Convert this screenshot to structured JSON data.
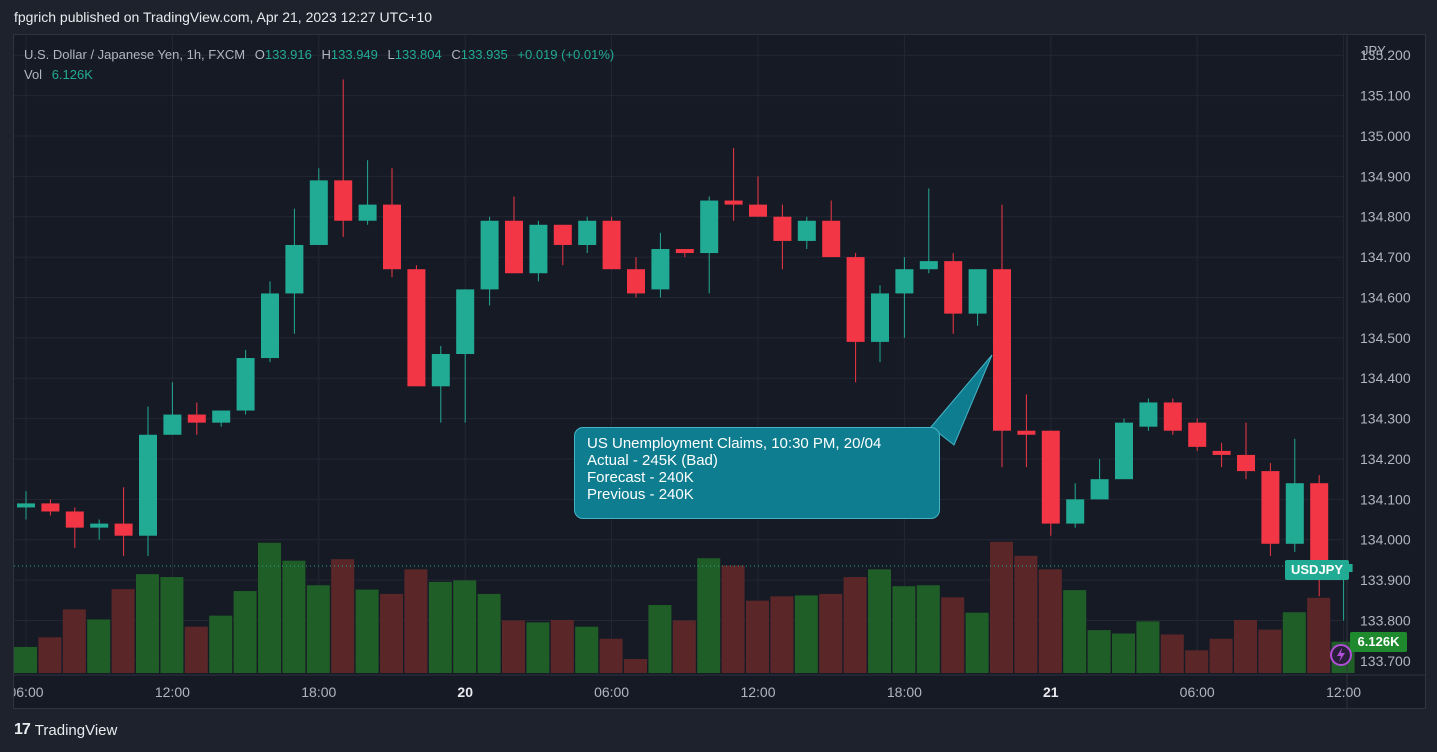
{
  "header": {
    "caption": "fpgrich published on TradingView.com, Apr 21, 2023 12:27 UTC+10"
  },
  "legend": {
    "symbol": "U.S. Dollar / Japanese Yen, 1h, FXCM",
    "o_label": "O",
    "o": "133.916",
    "h_label": "H",
    "h": "133.949",
    "l_label": "L",
    "l": "133.804",
    "c_label": "C",
    "c": "133.935",
    "change": "+0.019 (+0.01%)",
    "vol_label": "Vol",
    "vol": "6.126K"
  },
  "currency": "JPY",
  "callout": {
    "line1": "US Unemployment Claims, 10:30 PM, 20/04",
    "line2": "Actual - 245K (Bad)",
    "line3": "Forecast - 240K",
    "line4": "Previous - 240K"
  },
  "symbol_tag": "USDJPY",
  "volume_tag": "6.126K",
  "footer": {
    "brand": "TradingView",
    "logo": "17"
  },
  "colors": {
    "up": "#22ab94",
    "down": "#f23645",
    "vol_up": "#1f5e26",
    "vol_down": "#5b2628",
    "background": "#161a25"
  },
  "icons": {
    "lightning": "lightning-icon"
  },
  "chart_data": {
    "type": "candlestick",
    "ylim": [
      133.67,
      135.25
    ],
    "ytick_labels": [
      "135.200",
      "135.100",
      "135.000",
      "134.900",
      "134.800",
      "134.700",
      "134.600",
      "134.500",
      "134.400",
      "134.300",
      "134.200",
      "134.100",
      "134.000",
      "133.900",
      "133.800",
      "133.700"
    ],
    "yticks": [
      135.2,
      135.1,
      135.0,
      134.9,
      134.8,
      134.7,
      134.6,
      134.5,
      134.4,
      134.3,
      134.2,
      134.1,
      134.0,
      133.9,
      133.8,
      133.7
    ],
    "xtick_labels": [
      "06:00",
      "12:00",
      "18:00",
      "20",
      "06:00",
      "12:00",
      "18:00",
      "21",
      "06:00",
      "12:00"
    ],
    "xtick_index": [
      0,
      6,
      12,
      18,
      24,
      30,
      36,
      42,
      48,
      54
    ],
    "last_price_line": 133.935,
    "candles": [
      {
        "o": 134.08,
        "h": 134.12,
        "l": 134.05,
        "c": 134.09
      },
      {
        "o": 134.09,
        "h": 134.1,
        "l": 134.06,
        "c": 134.07
      },
      {
        "o": 134.07,
        "h": 134.08,
        "l": 133.98,
        "c": 134.03
      },
      {
        "o": 134.03,
        "h": 134.05,
        "l": 134.0,
        "c": 134.04
      },
      {
        "o": 134.04,
        "h": 134.13,
        "l": 133.96,
        "c": 134.01
      },
      {
        "o": 134.01,
        "h": 134.33,
        "l": 133.96,
        "c": 134.26
      },
      {
        "o": 134.26,
        "h": 134.39,
        "l": 134.26,
        "c": 134.31
      },
      {
        "o": 134.31,
        "h": 134.34,
        "l": 134.26,
        "c": 134.29
      },
      {
        "o": 134.29,
        "h": 134.32,
        "l": 134.28,
        "c": 134.32
      },
      {
        "o": 134.32,
        "h": 134.47,
        "l": 134.31,
        "c": 134.45
      },
      {
        "o": 134.45,
        "h": 134.64,
        "l": 134.44,
        "c": 134.61
      },
      {
        "o": 134.61,
        "h": 134.82,
        "l": 134.51,
        "c": 134.73
      },
      {
        "o": 134.73,
        "h": 134.92,
        "l": 134.73,
        "c": 134.89
      },
      {
        "o": 134.89,
        "h": 135.14,
        "l": 134.75,
        "c": 134.79
      },
      {
        "o": 134.79,
        "h": 134.94,
        "l": 134.78,
        "c": 134.83
      },
      {
        "o": 134.83,
        "h": 134.92,
        "l": 134.65,
        "c": 134.67
      },
      {
        "o": 134.67,
        "h": 134.68,
        "l": 134.38,
        "c": 134.38
      },
      {
        "o": 134.38,
        "h": 134.48,
        "l": 134.29,
        "c": 134.46
      },
      {
        "o": 134.46,
        "h": 134.62,
        "l": 134.29,
        "c": 134.62
      },
      {
        "o": 134.62,
        "h": 134.8,
        "l": 134.58,
        "c": 134.79
      },
      {
        "o": 134.79,
        "h": 134.85,
        "l": 134.66,
        "c": 134.66
      },
      {
        "o": 134.66,
        "h": 134.79,
        "l": 134.64,
        "c": 134.78
      },
      {
        "o": 134.78,
        "h": 134.78,
        "l": 134.68,
        "c": 134.73
      },
      {
        "o": 134.73,
        "h": 134.8,
        "l": 134.71,
        "c": 134.79
      },
      {
        "o": 134.79,
        "h": 134.8,
        "l": 134.67,
        "c": 134.67
      },
      {
        "o": 134.67,
        "h": 134.7,
        "l": 134.6,
        "c": 134.61
      },
      {
        "o": 134.62,
        "h": 134.76,
        "l": 134.6,
        "c": 134.72
      },
      {
        "o": 134.72,
        "h": 134.72,
        "l": 134.7,
        "c": 134.71
      },
      {
        "o": 134.71,
        "h": 134.85,
        "l": 134.61,
        "c": 134.84
      },
      {
        "o": 134.84,
        "h": 134.97,
        "l": 134.79,
        "c": 134.83
      },
      {
        "o": 134.83,
        "h": 134.9,
        "l": 134.8,
        "c": 134.8
      },
      {
        "o": 134.8,
        "h": 134.83,
        "l": 134.67,
        "c": 134.74
      },
      {
        "o": 134.74,
        "h": 134.8,
        "l": 134.72,
        "c": 134.79
      },
      {
        "o": 134.79,
        "h": 134.84,
        "l": 134.7,
        "c": 134.7
      },
      {
        "o": 134.7,
        "h": 134.71,
        "l": 134.39,
        "c": 134.49
      },
      {
        "o": 134.49,
        "h": 134.63,
        "l": 134.44,
        "c": 134.61
      },
      {
        "o": 134.61,
        "h": 134.7,
        "l": 134.5,
        "c": 134.67
      },
      {
        "o": 134.67,
        "h": 134.87,
        "l": 134.66,
        "c": 134.69
      },
      {
        "o": 134.69,
        "h": 134.71,
        "l": 134.51,
        "c": 134.56
      },
      {
        "o": 134.56,
        "h": 134.67,
        "l": 134.53,
        "c": 134.67
      },
      {
        "o": 134.67,
        "h": 134.83,
        "l": 134.18,
        "c": 134.27
      },
      {
        "o": 134.27,
        "h": 134.36,
        "l": 134.18,
        "c": 134.26
      },
      {
        "o": 134.27,
        "h": 134.27,
        "l": 134.01,
        "c": 134.04
      },
      {
        "o": 134.04,
        "h": 134.14,
        "l": 134.03,
        "c": 134.1
      },
      {
        "o": 134.1,
        "h": 134.2,
        "l": 134.1,
        "c": 134.15
      },
      {
        "o": 134.15,
        "h": 134.3,
        "l": 134.15,
        "c": 134.29
      },
      {
        "o": 134.28,
        "h": 134.35,
        "l": 134.27,
        "c": 134.34
      },
      {
        "o": 134.34,
        "h": 134.35,
        "l": 134.26,
        "c": 134.27
      },
      {
        "o": 134.29,
        "h": 134.3,
        "l": 134.22,
        "c": 134.23
      },
      {
        "o": 134.22,
        "h": 134.24,
        "l": 134.18,
        "c": 134.21
      },
      {
        "o": 134.21,
        "h": 134.29,
        "l": 134.15,
        "c": 134.17
      },
      {
        "o": 134.17,
        "h": 134.19,
        "l": 133.96,
        "c": 133.99
      },
      {
        "o": 133.99,
        "h": 134.25,
        "l": 133.97,
        "c": 134.14
      },
      {
        "o": 134.14,
        "h": 134.16,
        "l": 133.86,
        "c": 133.92
      },
      {
        "o": 133.92,
        "h": 133.95,
        "l": 133.8,
        "c": 133.94
      }
    ],
    "volume": [
      540,
      740,
      1320,
      1110,
      1740,
      2050,
      1990,
      960,
      1190,
      1700,
      2700,
      2330,
      1820,
      2360,
      1730,
      1640,
      2150,
      1890,
      1920,
      1640,
      1090,
      1050,
      1100,
      960,
      710,
      290,
      1410,
      1090,
      2380,
      2230,
      1500,
      1590,
      1610,
      1640,
      1990,
      2150,
      1800,
      1820,
      1570,
      1250,
      2720,
      2430,
      2150,
      1720,
      890,
      820,
      1070,
      800,
      470,
      710,
      1100,
      900,
      1260,
      1560,
      650
    ]
  }
}
